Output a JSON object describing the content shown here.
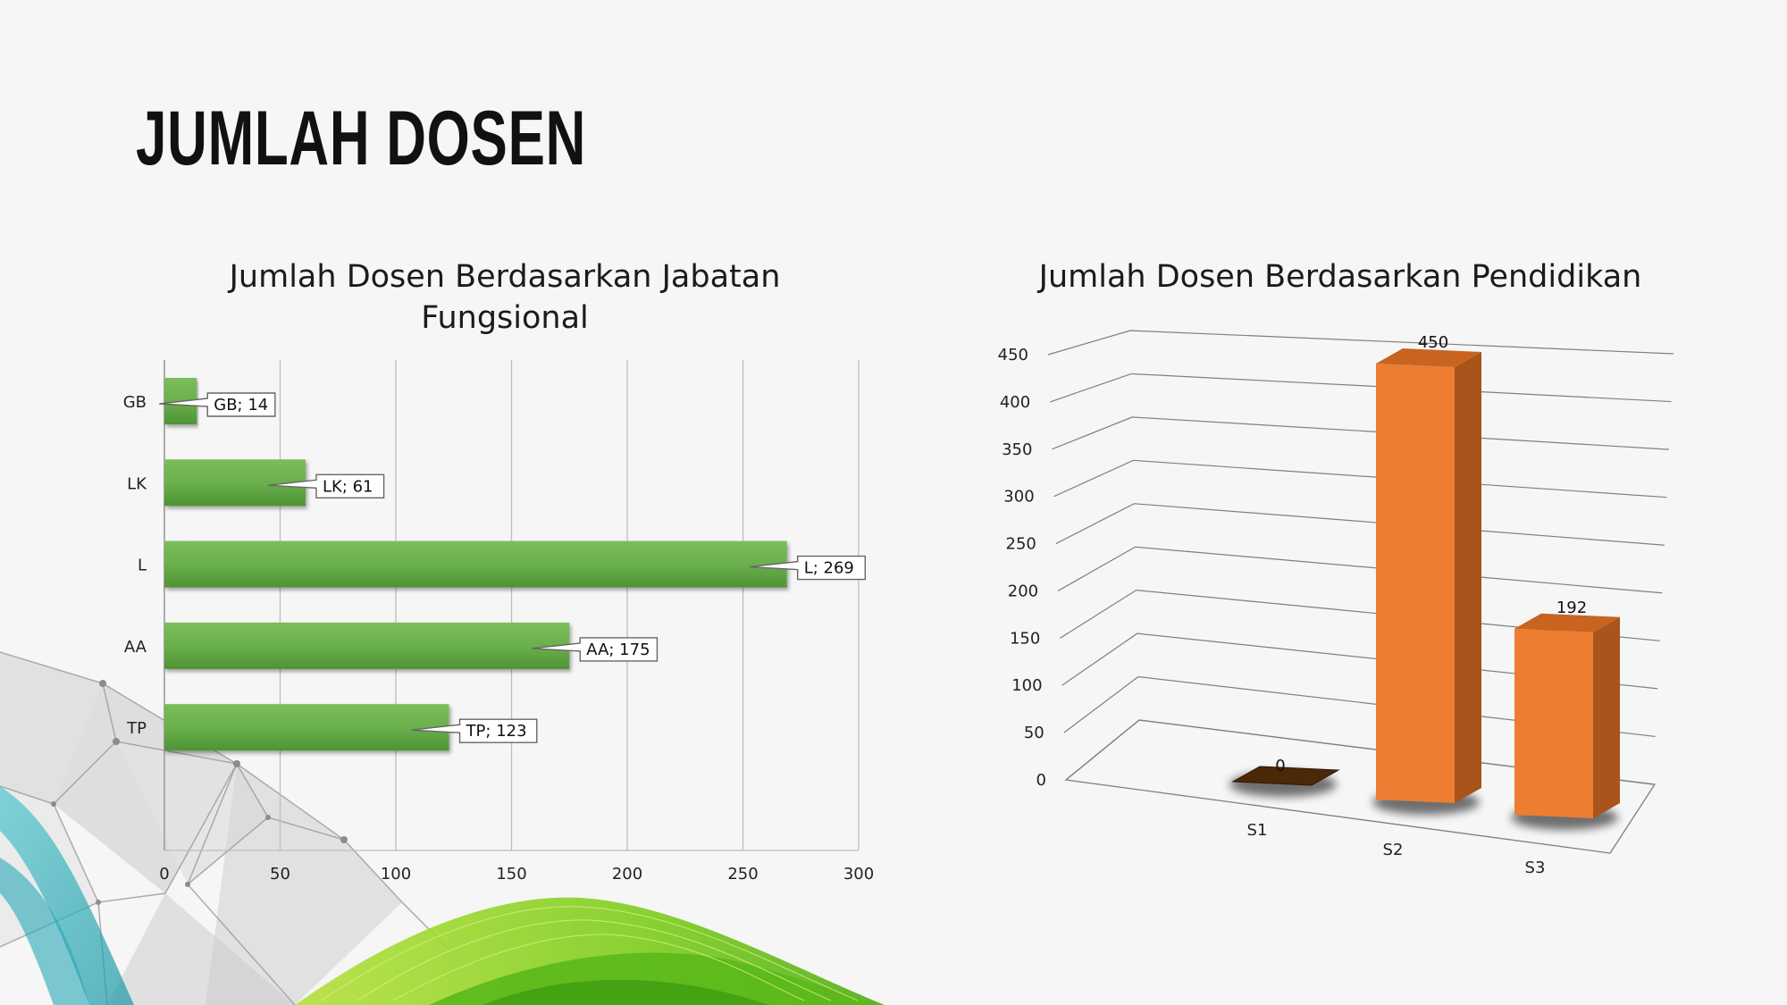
{
  "page": {
    "title": "JUMLAH DOSEN"
  },
  "chart_data": [
    {
      "type": "bar",
      "orientation": "horizontal",
      "title": "Jumlah Dosen Berdasarkan Jabatan Fungsional",
      "categories": [
        "GB",
        "LK",
        "L",
        "AA",
        "TP"
      ],
      "values": [
        14,
        61,
        269,
        175,
        123
      ],
      "data_labels": [
        "GB; 14",
        "LK; 61",
        "L; 269",
        "AA; 175",
        "TP; 123"
      ],
      "xlim": [
        0,
        300
      ],
      "x_ticks": [
        "0",
        "50",
        "100",
        "150",
        "200",
        "250",
        "300"
      ],
      "grid": true,
      "color": "#6ab04c"
    },
    {
      "type": "bar",
      "style": "3d-column",
      "title": "Jumlah Dosen Berdasarkan Pendidikan",
      "categories": [
        "S1",
        "S2",
        "S3"
      ],
      "values": [
        0,
        450,
        192
      ],
      "data_labels": [
        "0",
        "450",
        "192"
      ],
      "ylim": [
        0,
        450
      ],
      "y_ticks": [
        "0",
        "50",
        "100",
        "150",
        "200",
        "250",
        "300",
        "350",
        "400",
        "450"
      ],
      "grid": true,
      "color": "#ed7d31"
    }
  ]
}
